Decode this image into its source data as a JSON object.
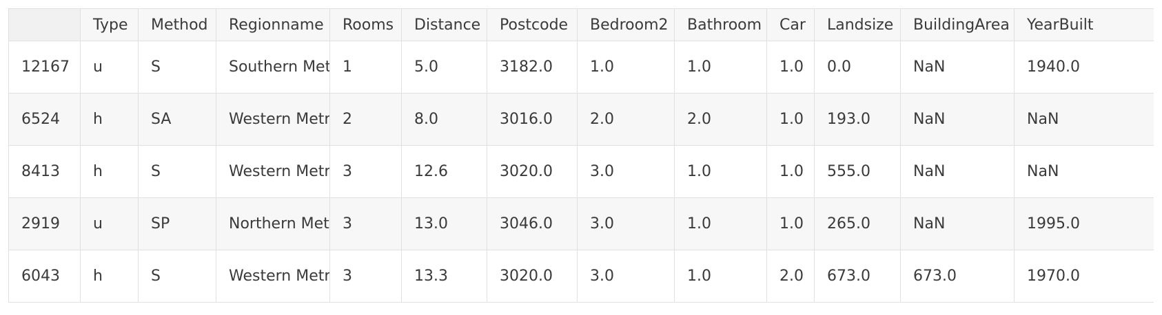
{
  "table": {
    "index_header": "",
    "columns": [
      "Type",
      "Method",
      "Regionname",
      "Rooms",
      "Distance",
      "Postcode",
      "Bedroom2",
      "Bathroom",
      "Car",
      "Landsize",
      "BuildingArea",
      "YearBuilt"
    ],
    "rows": [
      {
        "index": "12167",
        "cells": [
          "u",
          "S",
          "Southern Metropolitan",
          "1",
          "5.0",
          "3182.0",
          "1.0",
          "1.0",
          "1.0",
          "0.0",
          "NaN",
          "1940.0"
        ]
      },
      {
        "index": "6524",
        "cells": [
          "h",
          "SA",
          "Western Metropolitan",
          "2",
          "8.0",
          "3016.0",
          "2.0",
          "2.0",
          "1.0",
          "193.0",
          "NaN",
          "NaN"
        ]
      },
      {
        "index": "8413",
        "cells": [
          "h",
          "S",
          "Western Metropolitan",
          "3",
          "12.6",
          "3020.0",
          "3.0",
          "1.0",
          "1.0",
          "555.0",
          "NaN",
          "NaN"
        ]
      },
      {
        "index": "2919",
        "cells": [
          "u",
          "SP",
          "Northern Metropolitan",
          "3",
          "13.0",
          "3046.0",
          "3.0",
          "1.0",
          "1.0",
          "265.0",
          "NaN",
          "1995.0"
        ]
      },
      {
        "index": "6043",
        "cells": [
          "h",
          "S",
          "Western Metropolitan",
          "3",
          "13.3",
          "3020.0",
          "3.0",
          "1.0",
          "2.0",
          "673.0",
          "673.0",
          "1970.0"
        ]
      }
    ]
  }
}
